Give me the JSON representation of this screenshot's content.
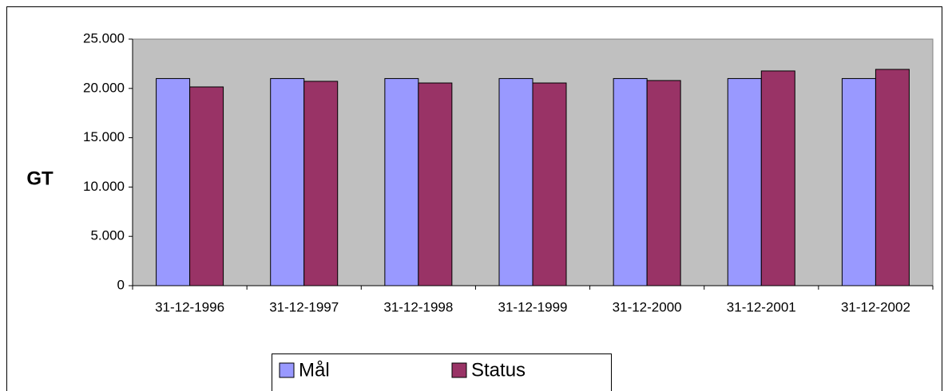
{
  "chart_data": {
    "type": "bar",
    "y_label": "GT",
    "categories": [
      "31-12-1996",
      "31-12-1997",
      "31-12-1998",
      "31-12-1999",
      "31-12-2000",
      "31-12-2001",
      "31-12-2002"
    ],
    "series": [
      {
        "name": "Mål",
        "color": "#9999ff",
        "values": [
          21000,
          21000,
          21000,
          21000,
          21000,
          21000,
          21000
        ]
      },
      {
        "name": "Status",
        "color": "#993366",
        "values": [
          20150,
          20720,
          20550,
          20550,
          20800,
          21770,
          21930
        ]
      }
    ],
    "ylim": [
      0,
      25000
    ],
    "yticks": [
      0,
      {
        "value": 5000,
        "label": "5.000"
      },
      {
        "value": 10000,
        "label": "10.000"
      },
      {
        "value": 15000,
        "label": "15.000"
      },
      {
        "value": 20000,
        "label": "20.000"
      },
      {
        "value": 25000,
        "label": "25.000"
      }
    ],
    "plot_background": "#c0c0c0"
  }
}
